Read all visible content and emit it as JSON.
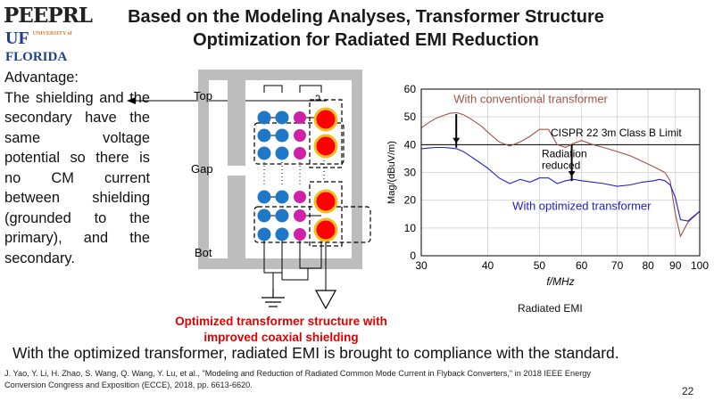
{
  "logo": {
    "peeprl": "PEEPRL",
    "uf": "UF",
    "university_of": "UNIVERSITY of",
    "florida": "FLORIDA"
  },
  "title": {
    "line1": "Based on the Modeling Analyses, Transformer Structure",
    "line2": "Optimization for Radiated EMI Reduction"
  },
  "advantage": {
    "heading": "Advantage:",
    "body": "The shielding and the secondary have the same voltage potential so there is no CM current between shielding (grounded to the primary), and the secondary."
  },
  "diagram": {
    "labels": {
      "top": "Top",
      "gap": "Gap",
      "bot": "Bot"
    },
    "caption_line1": "Optimized transformer structure with",
    "caption_line2": "improved coaxial shielding",
    "colors": {
      "primary": "#1f77c8",
      "shield": "#d020a8",
      "secondary": "#ff0000",
      "ring": "#f0c020",
      "core": "#bdbdbd"
    }
  },
  "chart_data": {
    "type": "line",
    "xlabel": "f/MHz",
    "ylabel": "Mag/(dBuV/m)",
    "x_scale": "log",
    "xlim": [
      30,
      100
    ],
    "ylim": [
      0,
      60
    ],
    "x_ticks": [
      30,
      40,
      50,
      60,
      70,
      80,
      90,
      100
    ],
    "y_ticks": [
      0,
      10,
      20,
      30,
      40,
      50,
      60
    ],
    "grid": true,
    "limit": {
      "name": "CISPR 22 3m Class B Limit",
      "value": 40
    },
    "series": [
      {
        "name": "With conventional transformer",
        "color": "#a0524a",
        "x": [
          30,
          31,
          32,
          33,
          34,
          35,
          36,
          37,
          38,
          39,
          40,
          42,
          44,
          46,
          48,
          50,
          52,
          54,
          56,
          58,
          60,
          63,
          66,
          70,
          74,
          78,
          82,
          84,
          86,
          88,
          90,
          92,
          95,
          100
        ],
        "y": [
          46,
          48,
          49.5,
          50.5,
          51.3,
          51.5,
          50.8,
          49.5,
          48,
          46.5,
          44.5,
          41,
          39.5,
          41,
          43,
          45.5,
          45.5,
          40,
          39,
          40.5,
          41.5,
          40,
          39,
          37.5,
          36,
          34,
          32,
          31,
          30,
          27,
          15,
          7,
          12,
          16
        ]
      },
      {
        "name": "With optimized transformer",
        "color": "#2020d0",
        "x": [
          30,
          31,
          32,
          33,
          34,
          35,
          36,
          37,
          38,
          40,
          42,
          44,
          46,
          48,
          50,
          52,
          54,
          56,
          58,
          60,
          63,
          66,
          70,
          74,
          78,
          82,
          84,
          86,
          88,
          90,
          92,
          95,
          100
        ],
        "y": [
          38.5,
          38.8,
          39,
          39,
          38.8,
          38.5,
          37.5,
          36,
          34.5,
          31.5,
          28,
          26,
          27.5,
          26.5,
          28,
          28,
          26,
          27,
          27.5,
          27,
          26.5,
          26,
          25,
          25.5,
          26.5,
          27,
          27.5,
          27,
          25.5,
          21,
          13,
          12.5,
          16
        ]
      }
    ],
    "annotations": {
      "conventional": "With conventional transformer",
      "optimized": "With optimized transformer",
      "reduced_line1": "Radiation",
      "reduced_line2": "reduced"
    },
    "caption": "Radiated EMI"
  },
  "conclusion": "With the optimized transformer, radiated EMI is brought to compliance with the standard.",
  "reference_line1": "J. Yao, Y. Li, H. Zhao, S. Wang, Q. Wang, Y. Lu, et al., \"Modeling and Reduction of Radiated Common Mode Current in Flyback Converters,\" in 2018 IEEE Energy",
  "reference_line2": "Conversion Congress and Exposition (ECCE), 2018, pp. 6613-6620.",
  "page_number": "22"
}
